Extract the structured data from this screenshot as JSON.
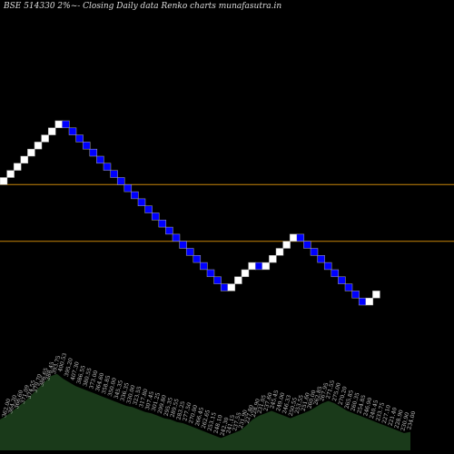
{
  "chart_data": {
    "type": "renko",
    "title": "BSE 514330  2%~-  Closing Daily data  Renko  charts munafasutra.in",
    "colors": {
      "background": "#000000",
      "up_brick": "#ffffff",
      "down_brick": "#0000ff",
      "brick_border": "#aaaaaa",
      "guide_line": "#c8860a",
      "volume_fill": "#1a3a1a",
      "volume_shade": "#101e10",
      "label_text": "#cccccc"
    },
    "bricks": [
      {
        "dir": "up",
        "close": 364.4
      },
      {
        "dir": "up",
        "close": 371.69
      },
      {
        "dir": "up",
        "close": 379.12
      },
      {
        "dir": "up",
        "close": 386.7
      },
      {
        "dir": "up",
        "close": 394.44
      },
      {
        "dir": "up",
        "close": 402.33
      },
      {
        "dir": "up",
        "close": 410.37
      },
      {
        "dir": "up",
        "close": 418.58
      },
      {
        "dir": "up",
        "close": 426.95
      },
      {
        "dir": "down",
        "close": 418.58
      },
      {
        "dir": "down",
        "close": 410.37
      },
      {
        "dir": "down",
        "close": 402.33
      },
      {
        "dir": "down",
        "close": 394.44
      },
      {
        "dir": "down",
        "close": 386.7
      },
      {
        "dir": "down",
        "close": 379.12
      },
      {
        "dir": "down",
        "close": 371.69
      },
      {
        "dir": "down",
        "close": 364.4
      },
      {
        "dir": "down",
        "close": 357.26
      },
      {
        "dir": "down",
        "close": 350.25
      },
      {
        "dir": "down",
        "close": 343.39
      },
      {
        "dir": "down",
        "close": 336.66
      },
      {
        "dir": "down",
        "close": 330.06
      },
      {
        "dir": "down",
        "close": 323.58
      },
      {
        "dir": "down",
        "close": 317.24
      },
      {
        "dir": "down",
        "close": 311.02
      },
      {
        "dir": "down",
        "close": 304.92
      },
      {
        "dir": "down",
        "close": 298.94
      },
      {
        "dir": "down",
        "close": 293.08
      },
      {
        "dir": "down",
        "close": 287.34
      },
      {
        "dir": "down",
        "close": 281.7
      },
      {
        "dir": "down",
        "close": 276.18
      },
      {
        "dir": "down",
        "close": 270.76
      },
      {
        "dir": "down",
        "close": 265.45
      },
      {
        "dir": "up",
        "close": 270.76
      },
      {
        "dir": "up",
        "close": 276.18
      },
      {
        "dir": "up",
        "close": 281.7
      },
      {
        "dir": "up",
        "close": 287.34
      },
      {
        "dir": "down",
        "close": 281.7
      },
      {
        "dir": "up",
        "close": 287.34
      },
      {
        "dir": "up",
        "close": 293.08
      },
      {
        "dir": "up",
        "close": 298.94
      },
      {
        "dir": "up",
        "close": 304.92
      },
      {
        "dir": "up",
        "close": 311.02
      },
      {
        "dir": "down",
        "close": 304.92
      },
      {
        "dir": "down",
        "close": 298.94
      },
      {
        "dir": "down",
        "close": 293.08
      },
      {
        "dir": "down",
        "close": 287.34
      },
      {
        "dir": "down",
        "close": 281.7
      },
      {
        "dir": "down",
        "close": 276.18
      },
      {
        "dir": "down",
        "close": 270.76
      },
      {
        "dir": "down",
        "close": 265.45
      },
      {
        "dir": "down",
        "close": 260.25
      },
      {
        "dir": "down",
        "close": 255.14
      },
      {
        "dir": "up",
        "close": 260.25
      },
      {
        "dir": "up",
        "close": 265.45
      }
    ],
    "guide_lines": [
      357.26,
      304.92
    ],
    "labels": [
      "362.00",
      "364.20",
      "366.60",
      "371.09",
      "374.55",
      "379.70",
      "386.65",
      "388.45",
      "393.75",
      "400.53",
      "395.20",
      "407.30",
      "386.55",
      "380.55",
      "373.00",
      "364.60",
      "358.85",
      "350.00",
      "345.35",
      "336.35",
      "330.00",
      "323.55",
      "317.80",
      "307.45",
      "301.25",
      "299.80",
      "295.35",
      "289.55",
      "283.25",
      "277.50",
      "270.00",
      "266.45",
      "262.65",
      "253.15",
      "248.10",
      "242.30",
      "241.15",
      "237.55",
      "231.90",
      "227.80",
      "228.90",
      "231.05",
      "237.60",
      "245.45",
      "249.00",
      "246.33",
      "250.55",
      "253.55",
      "251.60",
      "260.00",
      "262.85",
      "267.95",
      "271.55",
      "275.00",
      "270.20",
      "265.85",
      "260.35",
      "254.85",
      "246.90",
      "240.45",
      "233.75",
      "227.10",
      "221.40",
      "228.90",
      "230.90",
      "234.00"
    ],
    "volume": [
      0.25,
      0.28,
      0.32,
      0.36,
      0.4,
      0.45,
      0.5,
      0.55,
      0.6,
      0.62,
      0.58,
      0.55,
      0.52,
      0.5,
      0.48,
      0.46,
      0.44,
      0.42,
      0.4,
      0.38,
      0.36,
      0.35,
      0.33,
      0.31,
      0.3,
      0.28,
      0.26,
      0.25,
      0.23,
      0.22,
      0.2,
      0.18,
      0.16,
      0.14,
      0.12,
      0.1,
      0.12,
      0.14,
      0.16,
      0.2,
      0.25,
      0.28,
      0.3,
      0.32,
      0.3,
      0.28,
      0.26,
      0.28,
      0.3,
      0.32,
      0.35,
      0.38,
      0.4,
      0.38,
      0.35,
      0.32,
      0.3,
      0.28,
      0.26,
      0.24,
      0.22,
      0.2,
      0.18,
      0.16,
      0.14,
      0.15
    ]
  }
}
